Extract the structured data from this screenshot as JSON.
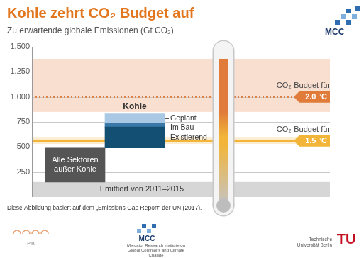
{
  "chart_data": {
    "type": "bar",
    "title": "Kohle zehrt CO₂ Budget auf",
    "subtitle": "Zu erwartende globale Emissionen (Gt CO₂)",
    "categories": [
      null,
      "Kohle"
    ],
    "base": {
      "name": "Emittiert von 2011–2015",
      "value": 150,
      "color": "#d6d6d6"
    },
    "series": [
      {
        "name": "Alle Sektoren außer Kohle",
        "color": "#555555",
        "values": [
          340,
          null
        ]
      },
      {
        "name": "Existierend",
        "color": "#134f72",
        "values": [
          null,
          210
        ]
      },
      {
        "name": "Im Bau",
        "color": "#3a78a8",
        "values": [
          null,
          40
        ]
      },
      {
        "name": "Geplant",
        "color": "#a9c8e4",
        "values": [
          null,
          90
        ]
      }
    ],
    "stacked": true,
    "ylim": [
      0,
      1500
    ],
    "yticks": [
      250,
      500,
      750,
      {
        "value": 1000,
        "label": "1.000"
      },
      {
        "value": 1250,
        "label": "1.250"
      },
      {
        "value": 1500,
        "label": "1.500"
      }
    ],
    "grid": true,
    "tick_labels": "y",
    "budgets": [
      {
        "label": "CO₂-Budget für",
        "temperature": "2.0 °C",
        "range": [
          850,
          1380
        ],
        "value": 1000,
        "color": "#e07b39",
        "line_style": "dotted"
      },
      {
        "label": "CO₂-Budget für",
        "temperature": "1.5 °C",
        "range": [
          530,
          600
        ],
        "value": 560,
        "color": "#f2b53a",
        "line_style": "solid"
      }
    ]
  },
  "source": "Diese Abbildung basiert auf dem „Emissions Gap Report“ der UN (2017).",
  "header_logo": "MCC",
  "footer_logos": [
    {
      "name": "PIK"
    },
    {
      "name": "MCC",
      "caption": "Mercator Research Institute on Global Commons and Climate Change"
    },
    {
      "name": "TU",
      "caption": "Technische Universität Berlin"
    }
  ]
}
